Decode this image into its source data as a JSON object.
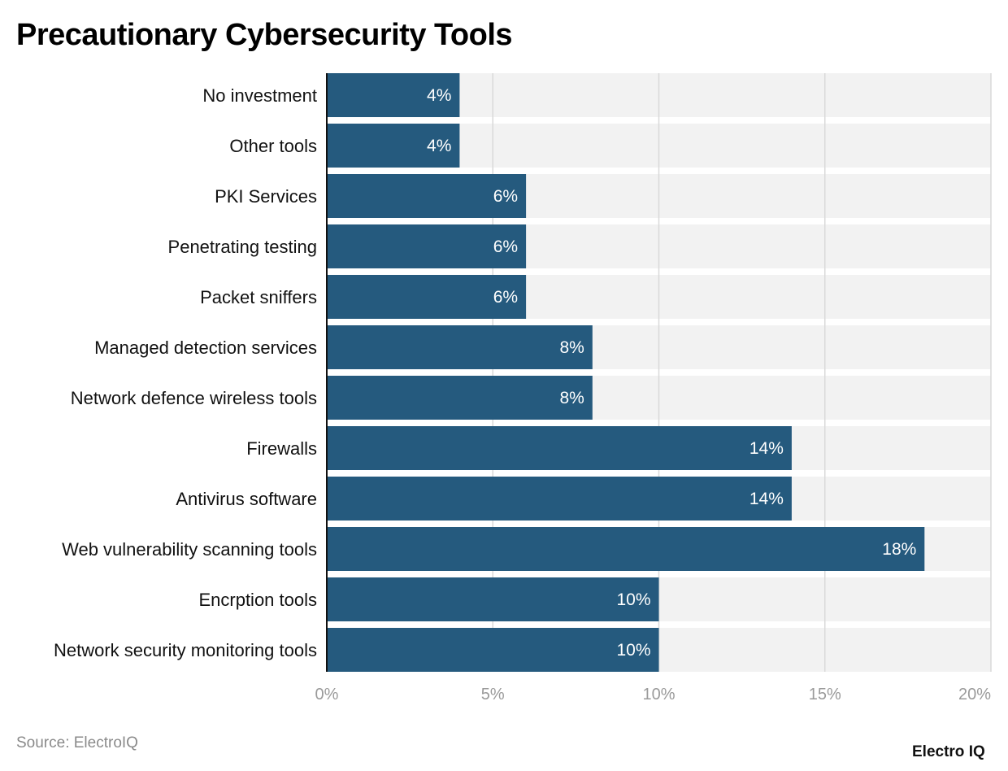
{
  "title": "Precautionary Cybersecurity Tools",
  "source": "Source: ElectroIQ",
  "logo": "Electro IQ",
  "colors": {
    "bar": "#255a7e",
    "band": "#f2f2f2",
    "grid": "#d9d9d9",
    "label_text": "#ffffff",
    "tick_text": "#9a9a9a"
  },
  "chart_data": {
    "type": "bar",
    "orientation": "horizontal",
    "categories": [
      "No investment",
      "Other tools",
      "PKI Services",
      "Penetrating testing",
      "Packet sniffers",
      "Managed detection services",
      "Network defence wireless tools",
      "Firewalls",
      "Antivirus software",
      "Web vulnerability scanning tools",
      "Encrption tools",
      "Network security monitoring tools"
    ],
    "values": [
      4,
      4,
      6,
      6,
      6,
      8,
      8,
      14,
      14,
      18,
      10,
      10
    ],
    "data_labels": [
      "4%",
      "4%",
      "6%",
      "6%",
      "6%",
      "8%",
      "8%",
      "14%",
      "14%",
      "18%",
      "10%",
      "10%"
    ],
    "xlim": [
      0,
      20
    ],
    "xticks": [
      0,
      5,
      10,
      15,
      20
    ],
    "xtick_labels": [
      "0%",
      "5%",
      "10%",
      "15%",
      "20%"
    ],
    "grid": true
  }
}
